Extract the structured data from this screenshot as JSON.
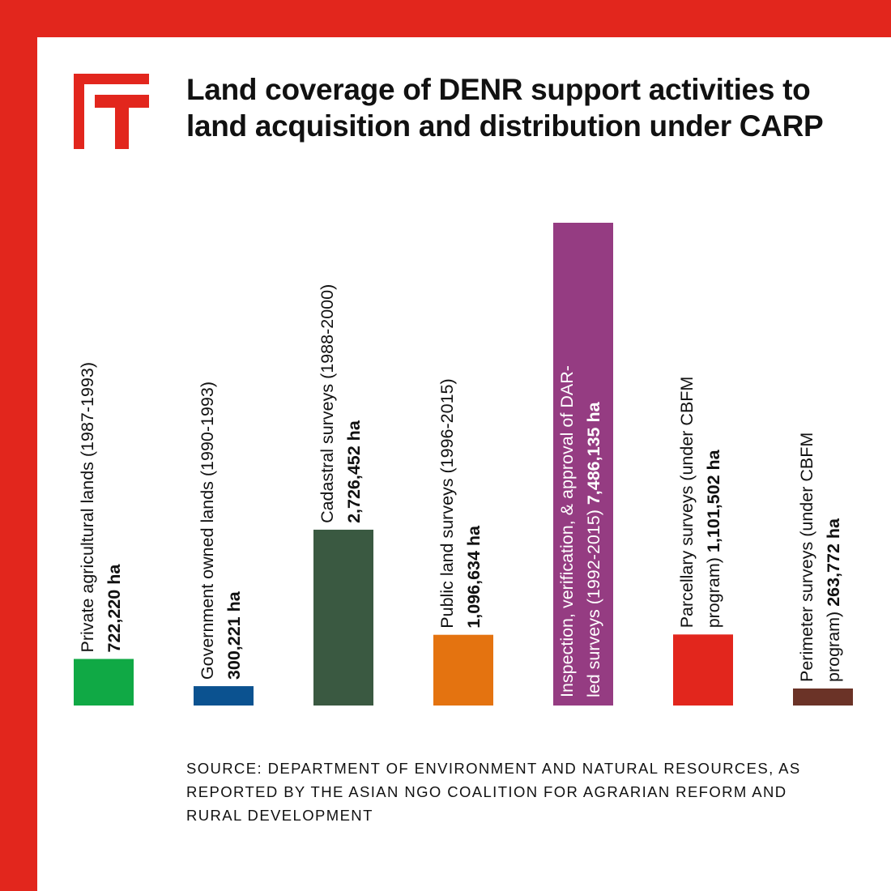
{
  "title": "Land coverage of DENR support activities to land acquisition and distribution under CARP",
  "source": "SOURCE: DEPARTMENT OF ENVIRONMENT AND NATURAL RESOURCES, AS REPORTED BY THE ASIAN NGO COALITION FOR AGRARIAN REFORM AND RURAL DEVELOPMENT",
  "logo": {
    "icon": "ft-logo-icon",
    "color": "#e2261d"
  },
  "colors": {
    "frame": "#e2261d",
    "background": "#ffffff",
    "text": "#111111"
  },
  "chart_data": {
    "type": "bar",
    "unit": "ha",
    "categories": [
      {
        "lines": [
          "Private agricultural lands (1987-1993)"
        ],
        "value_label": "722,220 ha"
      },
      {
        "lines": [
          "Government owned lands (1990-1993)"
        ],
        "value_label": "300,221 ha"
      },
      {
        "lines": [
          "Cadastral surveys (1988-2000)"
        ],
        "value_label": "2,726,452 ha"
      },
      {
        "lines": [
          "Public land surveys (1996-2015)"
        ],
        "value_label": "1,096,634 ha"
      },
      {
        "lines": [
          "Inspection, verification, & approval of DAR-",
          "led surveys (1992-2015)"
        ],
        "value_label": "7,486,135 ha"
      },
      {
        "lines": [
          "Parcellary surveys (under CBFM",
          "program)"
        ],
        "value_label": "1,101,502 ha"
      },
      {
        "lines": [
          "Perimeter surveys (under CBFM",
          "program)"
        ],
        "value_label": "263,772 ha"
      }
    ],
    "values": [
      722220,
      300221,
      2726452,
      1096634,
      7486135,
      1101502,
      263772
    ],
    "colors": [
      "#10a945",
      "#0b5290",
      "#3a5941",
      "#e47310",
      "#953c82",
      "#e2261d",
      "#6b3327"
    ],
    "ylim": [
      0,
      7486135
    ],
    "label_placement": "rotated vertical, above each bar"
  }
}
